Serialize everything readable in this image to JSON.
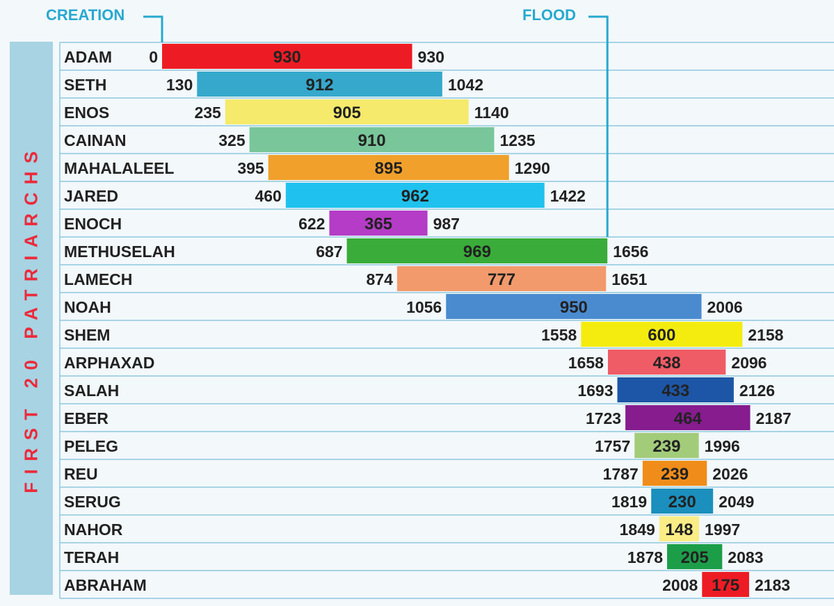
{
  "sidebar_label": "FIRST 20 PATRIARCHS",
  "markers": {
    "creation": "CREATION",
    "flood": "FLOOD"
  },
  "colors": {
    "background": "#f3f8fb",
    "row_line": "#8ec7dc",
    "marker_line": "#27a9cf",
    "sidebar": "#a7d3e3",
    "sidebar_text": "#ec2a3a",
    "text": "#222222"
  },
  "chart_data": {
    "type": "bar",
    "subtype": "floating-timeline",
    "x_unit": "year",
    "markers": [
      {
        "label": "CREATION",
        "x": 0
      },
      {
        "label": "FLOOD",
        "x": 1656
      }
    ],
    "rows": [
      {
        "name": "ADAM",
        "start": 0,
        "span": 930,
        "end": 930,
        "color": "#ed1c24"
      },
      {
        "name": "SETH",
        "start": 130,
        "span": 912,
        "end": 1042,
        "color": "#36a8cc"
      },
      {
        "name": "ENOS",
        "start": 235,
        "span": 905,
        "end": 1140,
        "color": "#f5ea6b"
      },
      {
        "name": "CAINAN",
        "start": 325,
        "span": 910,
        "end": 1235,
        "color": "#79c69a"
      },
      {
        "name": "MAHALALEEL",
        "start": 395,
        "span": 895,
        "end": 1290,
        "color": "#f0a02b"
      },
      {
        "name": "JARED",
        "start": 460,
        "span": 962,
        "end": 1422,
        "color": "#1fc2ee"
      },
      {
        "name": "ENOCH",
        "start": 622,
        "span": 365,
        "end": 987,
        "color": "#b43cc6"
      },
      {
        "name": "METHUSELAH",
        "start": 687,
        "span": 969,
        "end": 1656,
        "color": "#3aac3a"
      },
      {
        "name": "LAMECH",
        "start": 874,
        "span": 777,
        "end": 1651,
        "color": "#f29a6c"
      },
      {
        "name": "NOAH",
        "start": 1056,
        "span": 950,
        "end": 2006,
        "color": "#4a8bd0"
      },
      {
        "name": "SHEM",
        "start": 1558,
        "span": 600,
        "end": 2158,
        "color": "#f4ec0f"
      },
      {
        "name": "ARPHAXAD",
        "start": 1658,
        "span": 438,
        "end": 2096,
        "color": "#f05c66"
      },
      {
        "name": "SALAH",
        "start": 1693,
        "span": 433,
        "end": 2126,
        "color": "#1d56a6"
      },
      {
        "name": "EBER",
        "start": 1723,
        "span": 464,
        "end": 2187,
        "color": "#861c8e"
      },
      {
        "name": "PELEG",
        "start": 1757,
        "span": 239,
        "end": 1996,
        "color": "#a2cc7a"
      },
      {
        "name": "REU",
        "start": 1787,
        "span": 239,
        "end": 2026,
        "color": "#f08d1a"
      },
      {
        "name": "SERUG",
        "start": 1819,
        "span": 230,
        "end": 2049,
        "color": "#1b8fbd"
      },
      {
        "name": "NAHOR",
        "start": 1849,
        "span": 148,
        "end": 1997,
        "color": "#fbed86"
      },
      {
        "name": "TERAH",
        "start": 1878,
        "span": 205,
        "end": 2083,
        "color": "#1c9e49"
      },
      {
        "name": "ABRAHAM",
        "start": 2008,
        "span": 175,
        "end": 2183,
        "color": "#ed1c24"
      }
    ]
  }
}
